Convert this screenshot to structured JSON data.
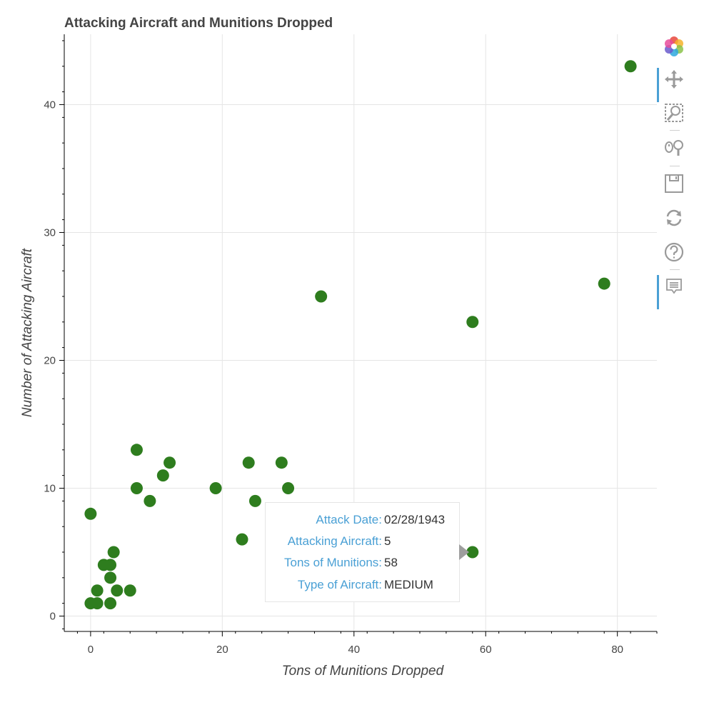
{
  "chart_data": {
    "type": "scatter",
    "title": "Attacking Aircraft and Munitions Dropped",
    "xlabel": "Tons of Munitions Dropped",
    "ylabel": "Number of Attacking Aircraft",
    "xlim": [
      -4,
      86
    ],
    "ylim": [
      -1.2,
      45.5
    ],
    "xticks": [
      0,
      20,
      40,
      60,
      80
    ],
    "yticks": [
      0,
      10,
      20,
      30,
      40
    ],
    "grid": true,
    "marker_color": "#2e7d1e",
    "points": [
      {
        "x": 0,
        "y": 1
      },
      {
        "x": 1,
        "y": 1
      },
      {
        "x": 3,
        "y": 1
      },
      {
        "x": 1,
        "y": 2
      },
      {
        "x": 4,
        "y": 2
      },
      {
        "x": 6,
        "y": 2
      },
      {
        "x": 3,
        "y": 3
      },
      {
        "x": 2,
        "y": 4
      },
      {
        "x": 3,
        "y": 4
      },
      {
        "x": 3.5,
        "y": 5
      },
      {
        "x": 0,
        "y": 8
      },
      {
        "x": 9,
        "y": 9
      },
      {
        "x": 7,
        "y": 10
      },
      {
        "x": 11,
        "y": 11
      },
      {
        "x": 12,
        "y": 12
      },
      {
        "x": 7,
        "y": 13
      },
      {
        "x": 19,
        "y": 10
      },
      {
        "x": 23,
        "y": 6
      },
      {
        "x": 24,
        "y": 12
      },
      {
        "x": 25,
        "y": 9
      },
      {
        "x": 29,
        "y": 12
      },
      {
        "x": 30,
        "y": 10
      },
      {
        "x": 35,
        "y": 25
      },
      {
        "x": 58,
        "y": 23
      },
      {
        "x": 58,
        "y": 5
      },
      {
        "x": 78,
        "y": 26
      },
      {
        "x": 82,
        "y": 43
      }
    ]
  },
  "tooltip": {
    "rows": [
      {
        "label": "Attack Date:",
        "value": "02/28/1943"
      },
      {
        "label": "Attacking Aircraft:",
        "value": "5"
      },
      {
        "label": "Tons of Munitions:",
        "value": "58"
      },
      {
        "label": "Type of Aircraft:",
        "value": "MEDIUM"
      }
    ]
  },
  "toolbar": {
    "tools": [
      {
        "icon": "bokeh-logo-icon",
        "active": false
      },
      {
        "icon": "pan-icon",
        "active": true
      },
      {
        "icon": "box-zoom-icon",
        "active": false
      },
      {
        "icon": "wheel-zoom-icon",
        "active": false
      },
      {
        "icon": "save-icon",
        "active": false
      },
      {
        "icon": "reset-icon",
        "active": false
      },
      {
        "icon": "help-icon",
        "active": false
      },
      {
        "icon": "hover-icon",
        "active": true
      }
    ]
  }
}
